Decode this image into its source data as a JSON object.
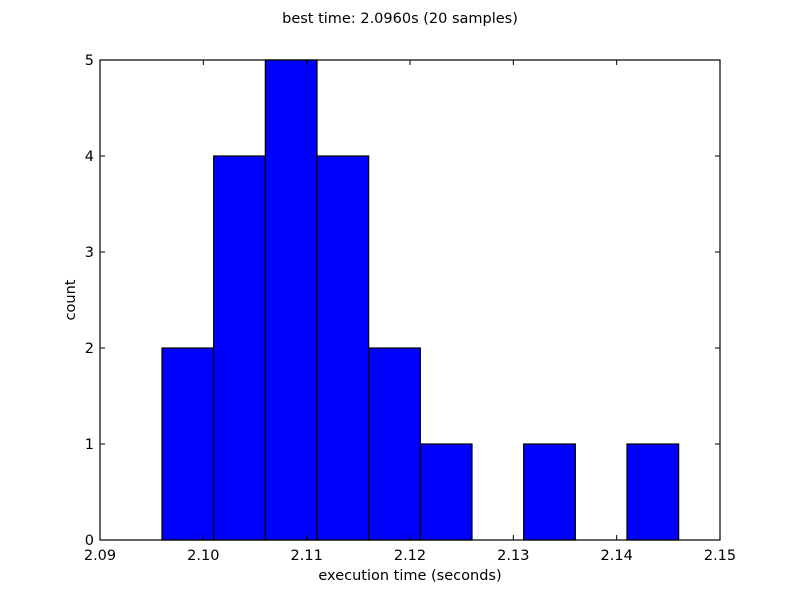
{
  "chart_data": {
    "type": "bar",
    "title": "best time: 2.0960s (20 samples)",
    "xlabel": "execution time (seconds)",
    "ylabel": "count",
    "xlim": [
      2.09,
      2.15
    ],
    "ylim": [
      0,
      5
    ],
    "xticks": [
      "2.09",
      "2.10",
      "2.11",
      "2.12",
      "2.13",
      "2.14",
      "2.15"
    ],
    "yticks": [
      "0",
      "1",
      "2",
      "3",
      "4",
      "5"
    ],
    "bins": [
      {
        "start": 2.096,
        "end": 2.101,
        "count": 2
      },
      {
        "start": 2.101,
        "end": 2.106,
        "count": 4
      },
      {
        "start": 2.106,
        "end": 2.111,
        "count": 5
      },
      {
        "start": 2.111,
        "end": 2.116,
        "count": 4
      },
      {
        "start": 2.116,
        "end": 2.121,
        "count": 2
      },
      {
        "start": 2.121,
        "end": 2.126,
        "count": 1
      },
      {
        "start": 2.126,
        "end": 2.131,
        "count": 0
      },
      {
        "start": 2.131,
        "end": 2.136,
        "count": 1
      },
      {
        "start": 2.136,
        "end": 2.141,
        "count": 0
      },
      {
        "start": 2.141,
        "end": 2.146,
        "count": 1
      }
    ],
    "bar_color": "#0000ff",
    "grid": false,
    "legend": false
  }
}
